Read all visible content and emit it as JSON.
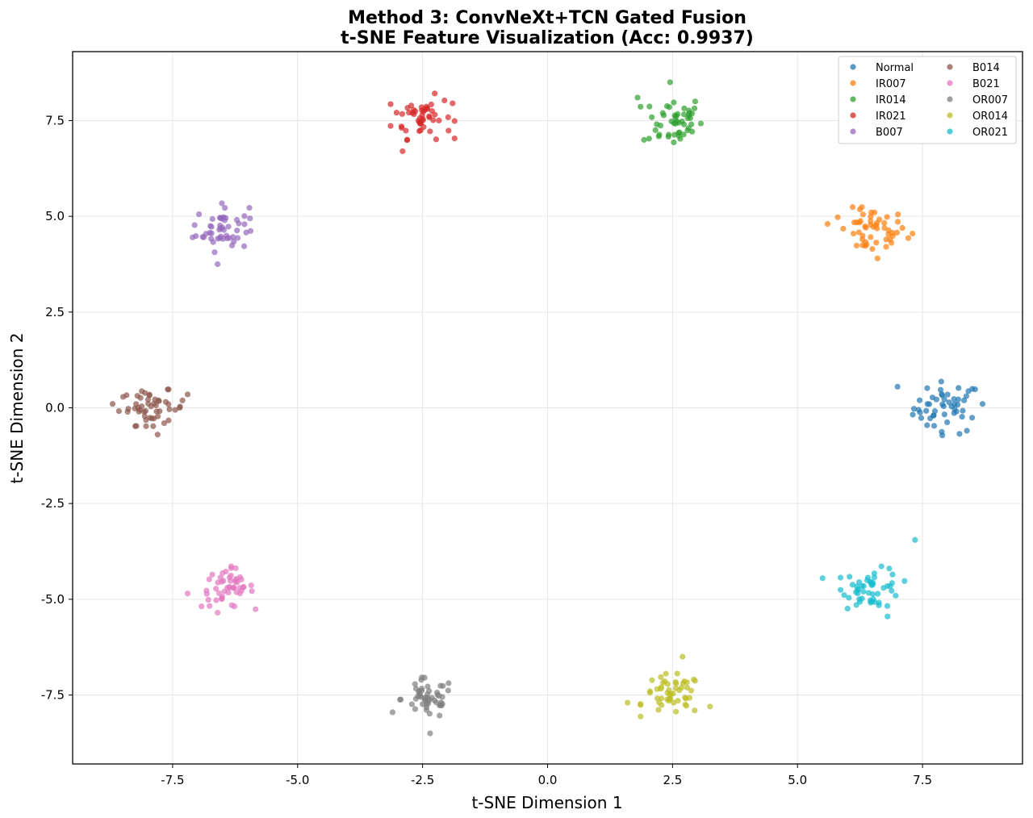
{
  "chart_data": {
    "type": "scatter",
    "title": "Method 3: ConvNeXt+TCN Gated Fusion",
    "subtitle": "t-SNE Feature Visualization (Acc: 0.9937)",
    "xlabel": "t-SNE Dimension 1",
    "ylabel": "t-SNE Dimension 2",
    "xlim": [
      -9.5,
      9.5
    ],
    "ylim": [
      -9.3,
      9.3
    ],
    "x_ticks": [
      -7.5,
      -5.0,
      -2.5,
      0.0,
      2.5,
      5.0,
      7.5
    ],
    "y_ticks": [
      -7.5,
      -5.0,
      -2.5,
      0.0,
      2.5,
      5.0,
      7.5
    ],
    "x_tick_labels": [
      "-7.5",
      "-5.0",
      "-2.5",
      "0.0",
      "2.5",
      "5.0",
      "7.5"
    ],
    "y_tick_labels": [
      "-7.5",
      "-5.0",
      "-2.5",
      "0.0",
      "2.5",
      "5.0",
      "7.5"
    ],
    "grid": true,
    "legend_position": "top-right",
    "legend_columns": 2,
    "series": [
      {
        "name": "Normal",
        "color": "#1f77b4",
        "center": [
          8.0,
          0.0
        ],
        "spread": [
          0.45,
          0.45
        ],
        "count": 50,
        "outliers": [
          [
            7.0,
            0.55
          ],
          [
            8.7,
            0.1
          ]
        ]
      },
      {
        "name": "IR007",
        "color": "#ff7f0e",
        "center": [
          6.5,
          4.6
        ],
        "spread": [
          0.45,
          0.4
        ],
        "count": 50,
        "outliers": [
          [
            5.6,
            4.8
          ],
          [
            7.3,
            4.55
          ],
          [
            6.6,
            3.9
          ]
        ]
      },
      {
        "name": "IR014",
        "color": "#2ca02c",
        "center": [
          2.5,
          7.5
        ],
        "spread": [
          0.4,
          0.45
        ],
        "count": 50,
        "outliers": [
          [
            2.45,
            8.5
          ],
          [
            1.8,
            8.1
          ]
        ]
      },
      {
        "name": "IR021",
        "color": "#d62728",
        "center": [
          -2.5,
          7.6
        ],
        "spread": [
          0.4,
          0.38
        ],
        "count": 50,
        "outliers": [
          [
            -2.9,
            6.7
          ],
          [
            -1.9,
            7.95
          ]
        ]
      },
      {
        "name": "B007",
        "color": "#9467bd",
        "center": [
          -6.5,
          4.7
        ],
        "spread": [
          0.35,
          0.4
        ],
        "count": 50,
        "outliers": [
          [
            -6.6,
            3.75
          ],
          [
            -7.1,
            4.45
          ]
        ]
      },
      {
        "name": "B014",
        "color": "#8c564b",
        "center": [
          -7.9,
          0.0
        ],
        "spread": [
          0.45,
          0.3
        ],
        "count": 50,
        "outliers": [
          [
            -8.7,
            0.1
          ],
          [
            -7.2,
            0.35
          ],
          [
            -7.8,
            -0.7
          ]
        ]
      },
      {
        "name": "B021",
        "color": "#e377c2",
        "center": [
          -6.4,
          -4.7
        ],
        "spread": [
          0.35,
          0.35
        ],
        "count": 50,
        "outliers": [
          [
            -7.2,
            -4.85
          ],
          [
            -6.6,
            -5.35
          ]
        ]
      },
      {
        "name": "OR007",
        "color": "#7f7f7f",
        "center": [
          -2.4,
          -7.6
        ],
        "spread": [
          0.35,
          0.35
        ],
        "count": 50,
        "outliers": [
          [
            -2.35,
            -8.5
          ],
          [
            -3.1,
            -7.95
          ]
        ]
      },
      {
        "name": "OR014",
        "color": "#bcbd22",
        "center": [
          2.5,
          -7.5
        ],
        "spread": [
          0.4,
          0.35
        ],
        "count": 50,
        "outliers": [
          [
            2.7,
            -6.5
          ],
          [
            1.6,
            -7.7
          ],
          [
            3.25,
            -7.8
          ]
        ]
      },
      {
        "name": "OR021",
        "color": "#17becf",
        "center": [
          6.5,
          -4.7
        ],
        "spread": [
          0.4,
          0.35
        ],
        "count": 50,
        "outliers": [
          [
            7.35,
            -3.45
          ],
          [
            5.5,
            -4.45
          ],
          [
            6.8,
            -5.45
          ]
        ]
      }
    ]
  }
}
